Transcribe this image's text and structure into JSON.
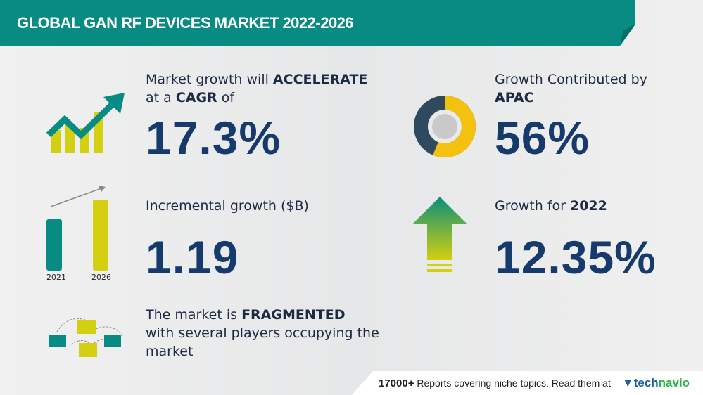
{
  "header": {
    "title": "GLOBAL GAN RF DEVICES MARKET 2022-2026"
  },
  "cagr": {
    "line1_pre": "Market growth will ",
    "line1_bold": "ACCELERATE",
    "line2_pre": "at a ",
    "line2_bold": "CAGR",
    "line2_post": " of",
    "value": "17.3%"
  },
  "incremental": {
    "label": "Incremental growth ($B)",
    "value": "1.19",
    "year_start": "2021",
    "year_end": "2026"
  },
  "vendor": {
    "line1_pre": "The market is ",
    "line1_bold": "FRAGMENTED",
    "line2": "with several players occupying the",
    "line3": "market"
  },
  "region": {
    "label": "Growth Contributed by",
    "region": "APAC",
    "value": "56%"
  },
  "yoy": {
    "label_pre": "Growth for ",
    "year": "2022",
    "value": "12.35%"
  },
  "footer": {
    "count": "17000+",
    "text": "Reports covering niche topics. Read them at",
    "logo_a": "tech",
    "logo_b": "navio"
  },
  "colors": {
    "teal": "#078b82",
    "lime": "#d4cf10",
    "navy": "#163a6b"
  }
}
